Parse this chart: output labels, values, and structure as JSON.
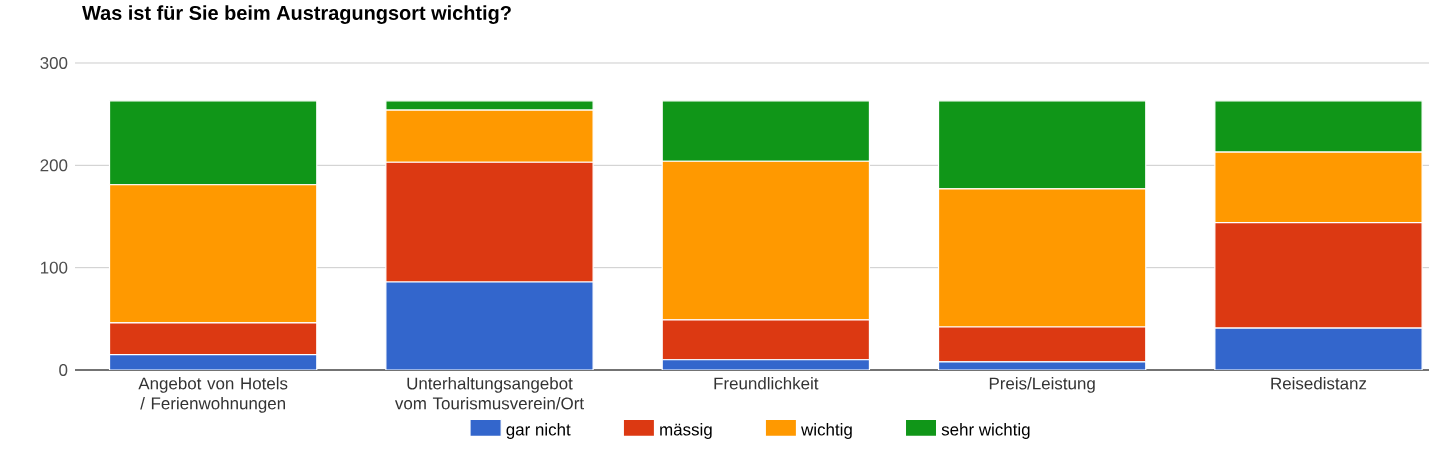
{
  "chart_data": {
    "type": "bar",
    "stacked": true,
    "title": "Was ist für Sie beim Austragungsort wichtig?",
    "categories": [
      "Angebot von Hotels / Ferienwohnungen",
      "Unterhaltungsangebot vom Tourismusverein/Ort",
      "Freundlichkeit",
      "Preis/Leistung",
      "Reisedistanz"
    ],
    "series": [
      {
        "name": "gar nicht",
        "color": "#3366cc",
        "values": [
          15,
          86,
          10,
          8,
          41
        ]
      },
      {
        "name": "mässig",
        "color": "#dc3912",
        "values": [
          31,
          117,
          39,
          34,
          103
        ]
      },
      {
        "name": "wichtig",
        "color": "#ff9900",
        "values": [
          135,
          51,
          155,
          135,
          69
        ]
      },
      {
        "name": "sehr wichtig",
        "color": "#109618",
        "values": [
          82,
          9,
          59,
          86,
          50
        ]
      }
    ],
    "ylim": [
      0,
      300
    ],
    "yticks": [
      0,
      100,
      200,
      300
    ],
    "grid": "y",
    "legend": "bottom"
  }
}
